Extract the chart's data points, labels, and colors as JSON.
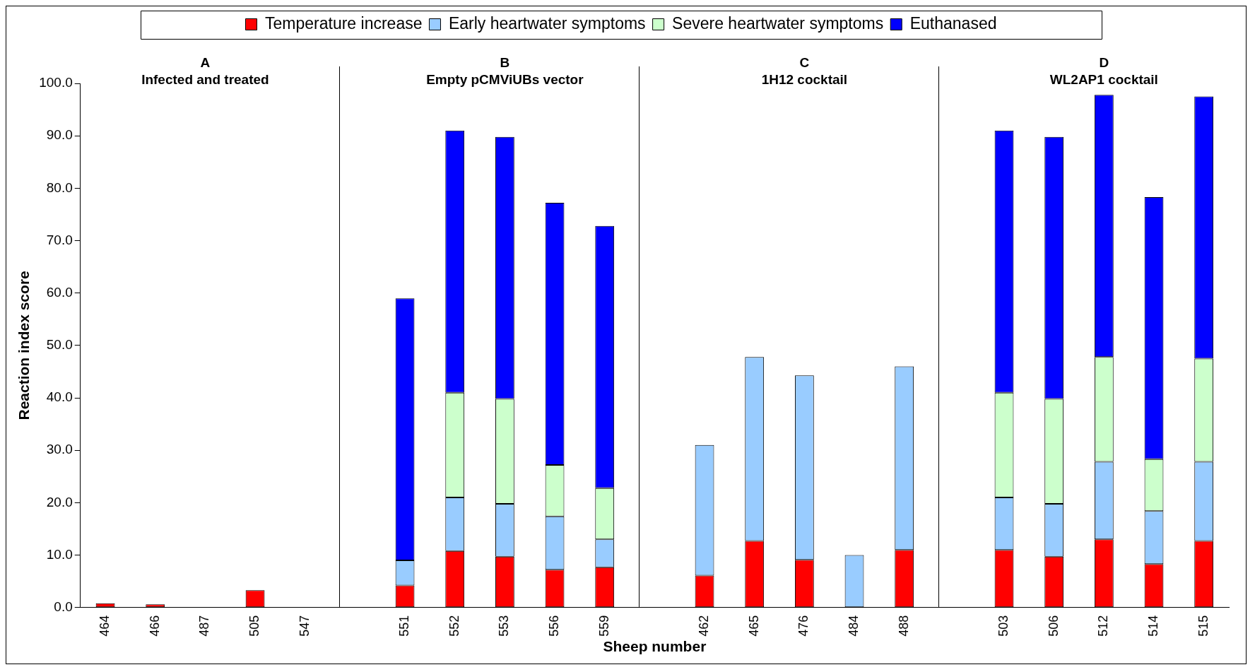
{
  "chart_data": {
    "type": "bar",
    "stacked": true,
    "xlabel": "Sheep number",
    "ylabel": "Reaction index score",
    "categories": [
      "464",
      "466",
      "487",
      "505",
      "547",
      null,
      "551",
      "552",
      "553",
      "556",
      "559",
      null,
      "462",
      "465",
      "476",
      "484",
      "488",
      null,
      "503",
      "506",
      "512",
      "514",
      "515"
    ],
    "series": [
      {
        "name": "Temperature increase",
        "color": "#ff0000",
        "values": [
          0.8,
          0.6,
          null,
          3.3,
          null,
          null,
          4.2,
          10.8,
          9.7,
          7.2,
          7.7,
          null,
          6.1,
          12.7,
          9.1,
          null,
          11.0,
          null,
          11.0,
          9.7,
          13.0,
          8.3,
          12.7
        ]
      },
      {
        "name": "Early heartwater symptoms",
        "color": "#99ccff",
        "values": [
          null,
          null,
          null,
          null,
          null,
          null,
          4.8,
          10.2,
          10.1,
          10.2,
          5.3,
          null,
          24.9,
          35.1,
          35.2,
          10.0,
          35.0,
          null,
          10.0,
          10.1,
          14.8,
          10.1,
          15.1
        ]
      },
      {
        "name": "Severe heartwater symptoms",
        "color": "#ccffcc",
        "values": [
          null,
          null,
          null,
          null,
          null,
          null,
          null,
          20.0,
          20.0,
          9.8,
          9.8,
          null,
          null,
          null,
          null,
          null,
          null,
          null,
          20.0,
          20.0,
          20.0,
          9.9,
          19.7
        ]
      },
      {
        "name": "Euthanased",
        "color": "#0000ff",
        "values": [
          null,
          null,
          null,
          null,
          null,
          null,
          50.0,
          50.0,
          50.0,
          50.0,
          50.0,
          null,
          null,
          null,
          null,
          null,
          null,
          null,
          50.0,
          50.0,
          50.0,
          50.0,
          50.0
        ]
      }
    ],
    "ylim": [
      0,
      100
    ],
    "yticks": [
      {
        "value": 0,
        "label": "0.0"
      },
      {
        "value": 10,
        "label": "10.0"
      },
      {
        "value": 20,
        "label": "20.0"
      },
      {
        "value": 30,
        "label": "30.0"
      },
      {
        "value": 40,
        "label": "40.0"
      },
      {
        "value": 50,
        "label": "50.0"
      },
      {
        "value": 60,
        "label": "60.0"
      },
      {
        "value": 70,
        "label": "70.0"
      },
      {
        "value": 80,
        "label": "80.0"
      },
      {
        "value": 90,
        "label": "90.0"
      },
      {
        "value": 100,
        "label": "100.0"
      }
    ],
    "annotations": [
      "A",
      "Infected and treated",
      "B",
      "Empty pCMViUBs vector",
      "C",
      "1H12 cocktail",
      "D",
      "WL2AP1 cocktail"
    ],
    "grid": false,
    "legend": "top"
  }
}
